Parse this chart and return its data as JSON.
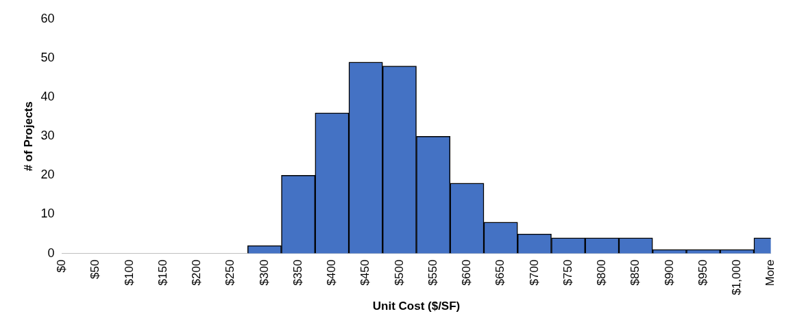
{
  "chart_data": {
    "type": "bar",
    "xlabel": "Unit Cost ($/SF)",
    "ylabel": "# of Projects",
    "categories": [
      "$0",
      "$50",
      "$100",
      "$150",
      "$200",
      "$250",
      "$300",
      "$350",
      "$400",
      "$450",
      "$500",
      "$550",
      "$600",
      "$650",
      "$700",
      "$750",
      "$800",
      "$850",
      "$900",
      "$950",
      "$1,000",
      "More"
    ],
    "values": [
      0,
      0,
      0,
      0,
      0,
      0,
      2,
      20,
      36,
      49,
      48,
      30,
      18,
      8,
      5,
      4,
      4,
      4,
      1,
      1,
      1,
      4
    ],
    "color": "#4472c4",
    "ylim": [
      0,
      60
    ],
    "yticks": [
      0,
      10,
      20,
      30,
      40,
      50,
      60
    ],
    "grid": false,
    "legend": false
  }
}
